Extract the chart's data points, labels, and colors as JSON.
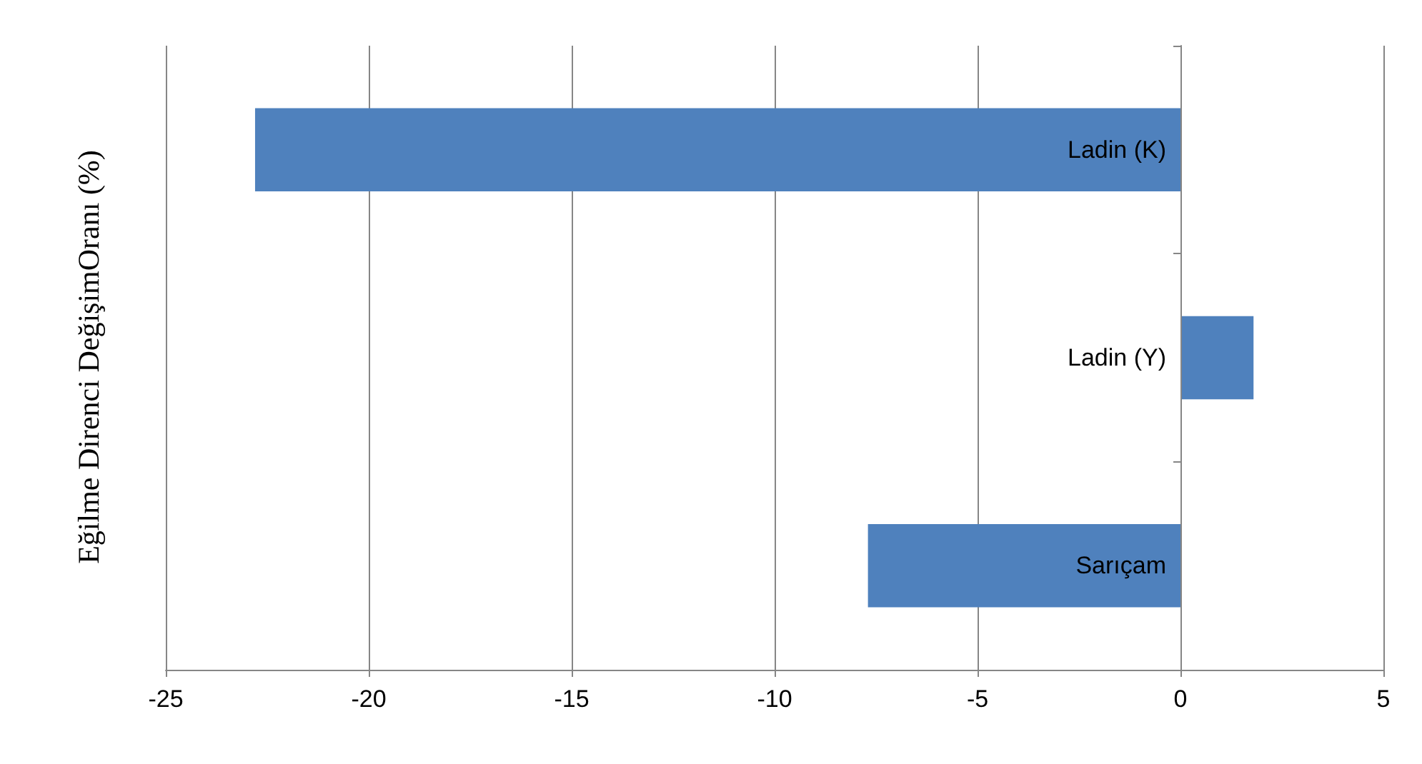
{
  "chart_data": {
    "type": "bar",
    "orientation": "horizontal",
    "ylabel": "Eğilme Direnci DeğişimOranı (%)",
    "categories": [
      "Ladin (K)",
      "Ladin (Y)",
      "Sarıçam"
    ],
    "values": [
      -22.8,
      1.8,
      -7.7
    ],
    "color": "#4f81bd",
    "xlim": [
      -25,
      5
    ],
    "xticks": [
      -25,
      -20,
      -15,
      -10,
      -5,
      0,
      5
    ],
    "grid": "x"
  }
}
